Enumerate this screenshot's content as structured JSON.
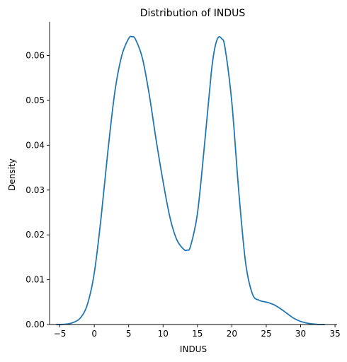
{
  "chart_data": {
    "type": "line",
    "title": "Distribution of INDUS",
    "xlabel": "INDUS",
    "ylabel": "Density",
    "xlim": [
      -6.5,
      35.3
    ],
    "ylim": [
      0,
      0.0675
    ],
    "grid": false,
    "legend": "none",
    "x_ticks": [
      -5,
      0,
      5,
      10,
      15,
      20,
      25,
      30,
      35
    ],
    "y_ticks": [
      0.0,
      0.01,
      0.02,
      0.03,
      0.04,
      0.05,
      0.06
    ],
    "x_tick_labels": [
      "−5",
      "0",
      "5",
      "10",
      "15",
      "20",
      "25",
      "30",
      "35"
    ],
    "y_tick_labels": [
      "0.00",
      "0.01",
      "0.02",
      "0.03",
      "0.04",
      "0.05",
      "0.06"
    ],
    "series": [
      {
        "color": "#1f77b4",
        "x": [
          -5.5,
          -4,
          -3,
          -2,
          -1,
          0,
          1,
          2,
          3,
          4,
          5,
          5.5,
          6,
          7,
          8,
          9,
          10,
          11,
          12,
          13,
          13.5,
          14,
          15,
          16,
          17,
          17.5,
          18,
          18.5,
          19,
          20,
          21,
          22,
          23,
          24,
          25,
          26,
          27,
          28,
          29,
          30,
          31,
          32,
          33,
          33.5
        ],
        "values": [
          0.0,
          0.0001,
          0.0005,
          0.0015,
          0.0045,
          0.0115,
          0.024,
          0.039,
          0.052,
          0.06,
          0.0638,
          0.0642,
          0.0636,
          0.0594,
          0.0512,
          0.0411,
          0.0319,
          0.0239,
          0.0189,
          0.0168,
          0.0166,
          0.0175,
          0.0248,
          0.0397,
          0.056,
          0.0615,
          0.064,
          0.0638,
          0.0618,
          0.0495,
          0.0298,
          0.0138,
          0.0068,
          0.0054,
          0.005,
          0.0045,
          0.0036,
          0.0025,
          0.0014,
          0.0007,
          0.0003,
          0.0001,
          0.0,
          0.0
        ]
      }
    ]
  }
}
